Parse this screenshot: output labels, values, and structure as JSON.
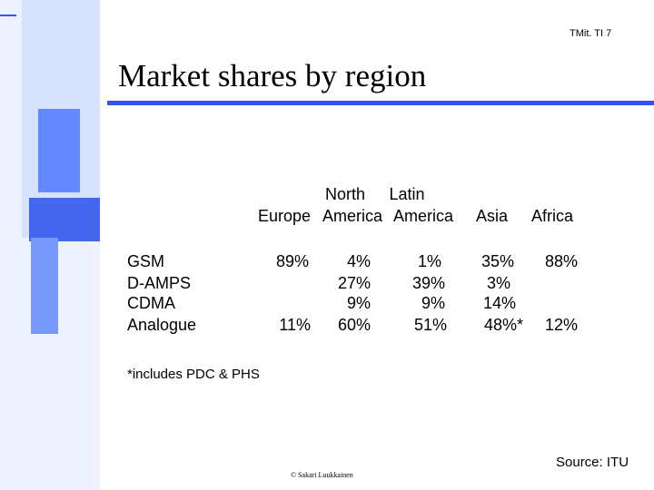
{
  "slide": {
    "number": "TMit. TI 7",
    "title": "Market shares by region"
  },
  "table": {
    "columns": [
      {
        "line1": "",
        "line2": "Europe"
      },
      {
        "line1": "North",
        "line2": "America"
      },
      {
        "line1": "Latin",
        "line2": "America"
      },
      {
        "line1": "",
        "line2": "Asia"
      },
      {
        "line1": "",
        "line2": "Africa"
      }
    ],
    "rows": [
      {
        "label": "GSM",
        "values": [
          "89%",
          "4%",
          "1%",
          "35%",
          "88%"
        ]
      },
      {
        "label": "D-AMPS",
        "values": [
          "",
          "27%",
          "39%",
          "3%",
          ""
        ]
      },
      {
        "label": "CDMA",
        "values": [
          "",
          "9%",
          "9%",
          "14%",
          ""
        ]
      },
      {
        "label": "Analogue",
        "values": [
          "11%",
          "60%",
          "51%",
          "48%*",
          "12%"
        ]
      }
    ]
  },
  "footnote": "*includes PDC & PHS",
  "copyright": "© Sakari Luukkainen",
  "source": "Source: ITU",
  "colors": {
    "accent": "#3355ee",
    "accent_light": "#6688ff",
    "accent_pale": "#dde6ff"
  }
}
